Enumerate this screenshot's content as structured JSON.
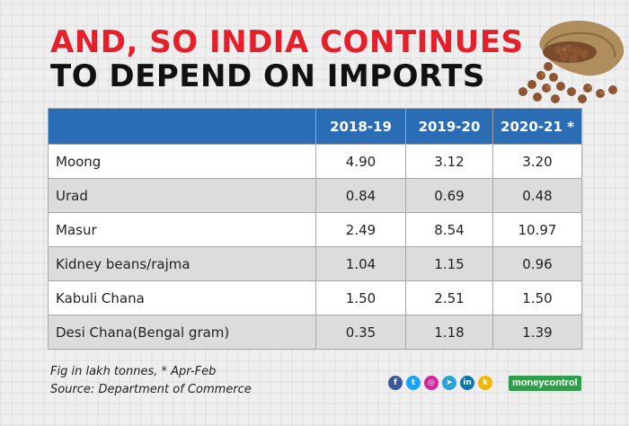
{
  "title": {
    "line1": "AND, SO INDIA CONTINUES",
    "line2": "TO DEPEND ON IMPORTS"
  },
  "chart_data": {
    "type": "table",
    "title": "AND, SO INDIA CONTINUES TO DEPEND ON IMPORTS",
    "columns": [
      "",
      "2018-19",
      "2019-20",
      "2020-21 *"
    ],
    "rows": [
      {
        "label": "Moong",
        "values": [
          "4.90",
          "3.12",
          "3.20"
        ]
      },
      {
        "label": "Urad",
        "values": [
          "0.84",
          "0.69",
          "0.48"
        ]
      },
      {
        "label": "Masur",
        "values": [
          "2.49",
          "8.54",
          "10.97"
        ]
      },
      {
        "label": "Kidney beans/rajma",
        "values": [
          "1.04",
          "1.15",
          "0.96"
        ]
      },
      {
        "label": "Kabuli Chana",
        "values": [
          "1.50",
          "2.51",
          "1.50"
        ]
      },
      {
        "label": "Desi Chana(Bengal gram)",
        "values": [
          "0.35",
          "1.18",
          "1.39"
        ]
      }
    ]
  },
  "notes": {
    "unit": "Fig in lakh tonnes, *  Apr-Feb",
    "source": "Source: Department of Commerce"
  },
  "social": {
    "icons": [
      {
        "name": "facebook-icon",
        "glyph": "f",
        "color": "#3b5998"
      },
      {
        "name": "twitter-icon",
        "glyph": "t",
        "color": "#1da1f2"
      },
      {
        "name": "instagram-icon",
        "glyph": "◎",
        "color": "#d6249f"
      },
      {
        "name": "telegram-icon",
        "glyph": "➤",
        "color": "#2aa3d8"
      },
      {
        "name": "linkedin-icon",
        "glyph": "in",
        "color": "#0e76a8"
      },
      {
        "name": "koo-icon",
        "glyph": "k",
        "color": "#f2b705"
      }
    ],
    "brand": "moneycontrol"
  },
  "colors": {
    "title_red": "#e5202a",
    "header_blue": "#2b6db5",
    "brand_green": "#2e9e4a"
  }
}
